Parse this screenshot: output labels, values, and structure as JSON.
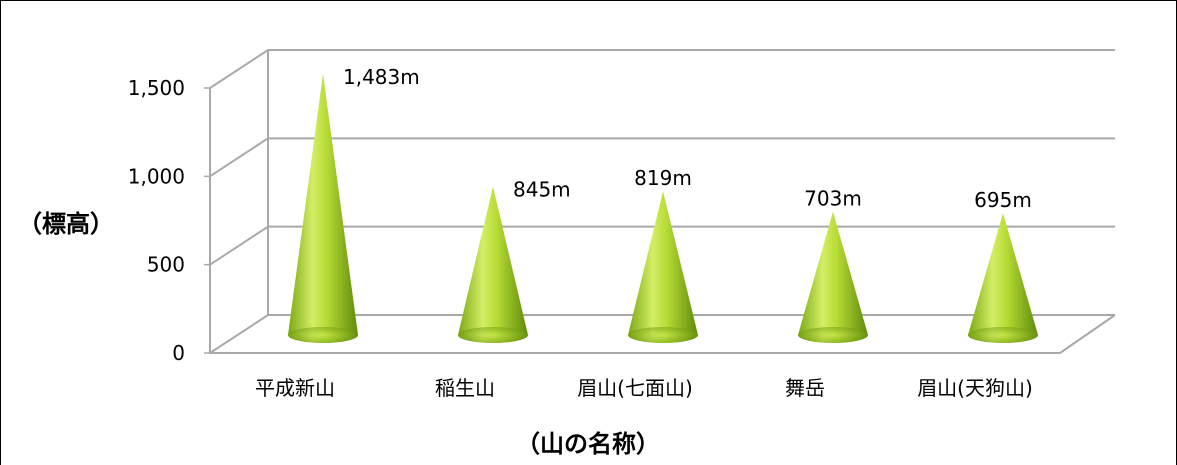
{
  "chart_data": {
    "type": "bar",
    "style": "3d-cone",
    "categories": [
      "平成新山",
      "稲生山",
      "眉山(七面山)",
      "舞岳",
      "眉山(天狗山)"
    ],
    "values": [
      1483,
      845,
      819,
      703,
      695
    ],
    "data_labels": [
      "1,483m",
      "845m",
      "819m",
      "703m",
      "695m"
    ],
    "yticks": [
      0,
      500,
      1000,
      1500
    ],
    "ytick_labels": [
      "0",
      "500",
      "1,000",
      "1,500"
    ],
    "ylim": [
      0,
      1500
    ],
    "ylabel": "（標高）",
    "xlabel": "（山の名称）",
    "grid": true,
    "legend": "none",
    "colors": {
      "cone_light": "#e6f58a",
      "cone_mid": "#a6d124",
      "cone_dark": "#5f8a0a",
      "gridline": "#a9a9a9",
      "axis": "#a9a9a9"
    }
  }
}
